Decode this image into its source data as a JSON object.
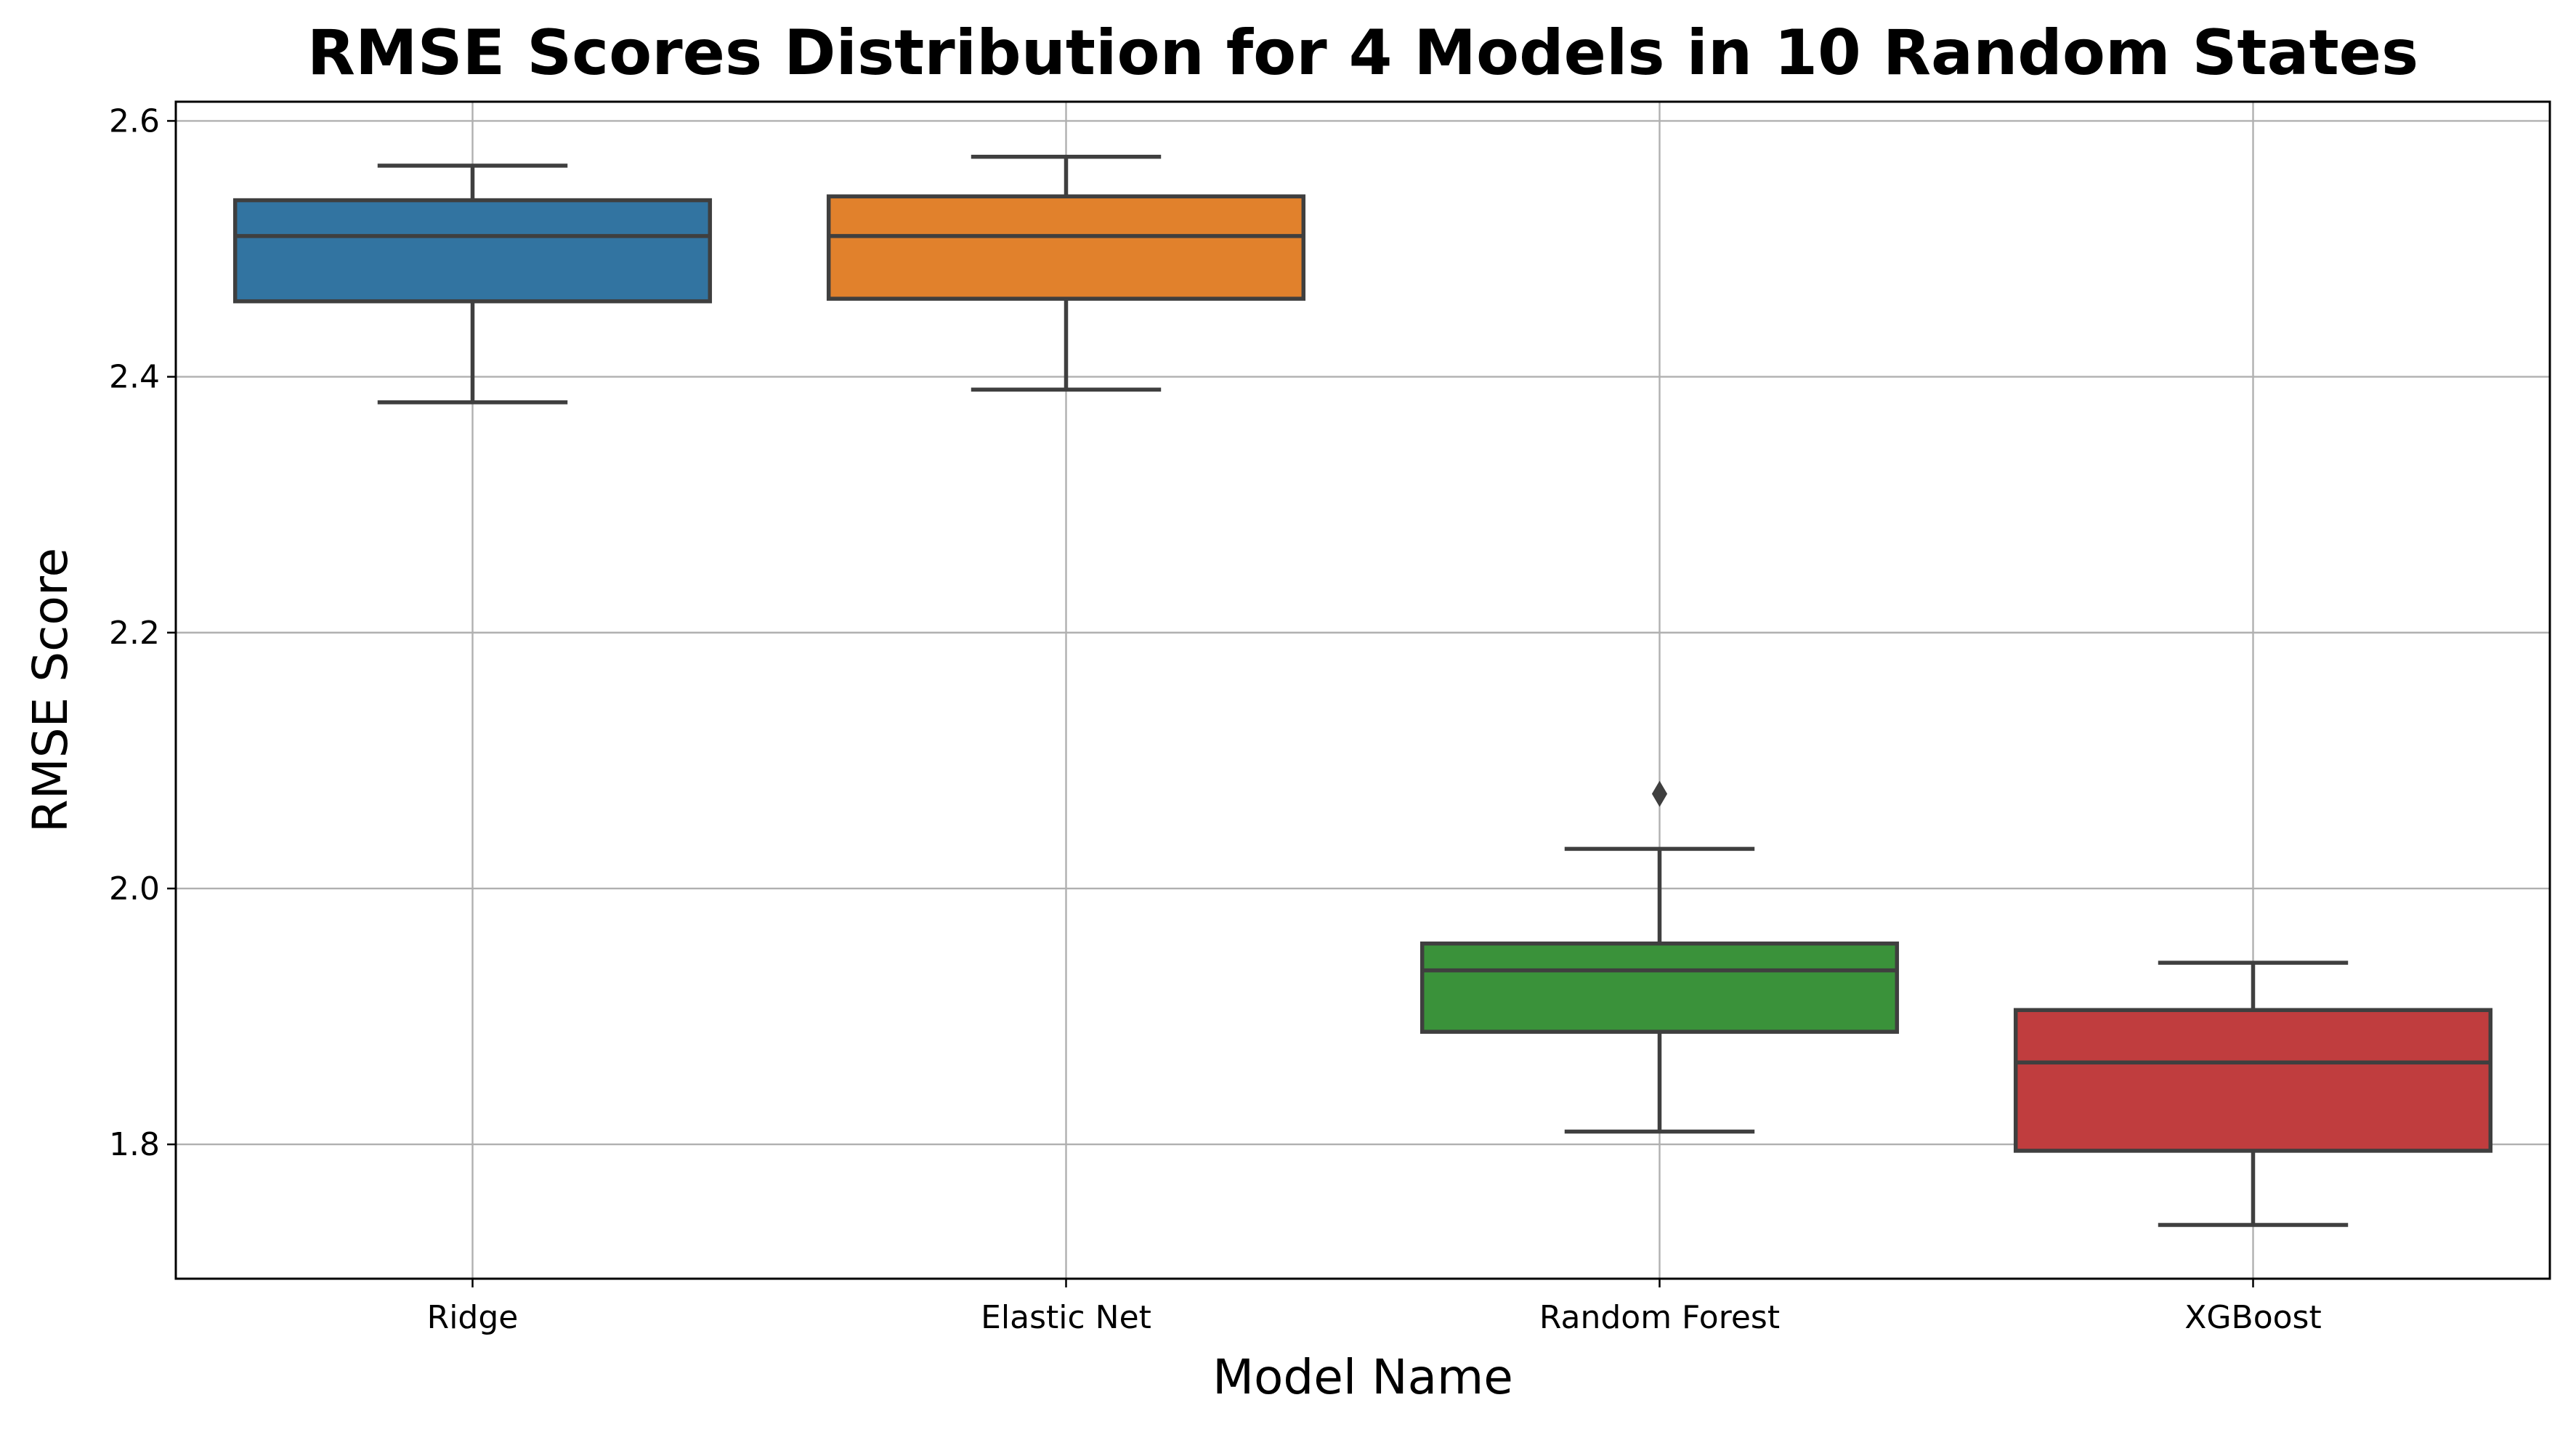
{
  "chart_data": {
    "type": "box",
    "title": "RMSE Scores Distribution for 4 Models in 10 Random States",
    "xlabel": "Model Name",
    "ylabel": "RMSE Score",
    "ylim": [
      1.695,
      2.615
    ],
    "yticks": [
      1.8,
      2.0,
      2.2,
      2.4,
      2.6
    ],
    "ytick_labels": [
      "1.8",
      "2.0",
      "2.2",
      "2.4",
      "2.6"
    ],
    "grid": true,
    "categories": [
      "Ridge",
      "Elastic Net",
      "Random Forest",
      "XGBoost"
    ],
    "boxes": [
      {
        "name": "Ridge",
        "whisker_low": 2.38,
        "q1": 2.459,
        "median": 2.51,
        "q3": 2.538,
        "whisker_high": 2.565,
        "outliers": [],
        "color": "#3274a1"
      },
      {
        "name": "Elastic Net",
        "whisker_low": 2.39,
        "q1": 2.461,
        "median": 2.51,
        "q3": 2.541,
        "whisker_high": 2.572,
        "outliers": [],
        "color": "#e1812c"
      },
      {
        "name": "Random Forest",
        "whisker_low": 1.81,
        "q1": 1.888,
        "median": 1.936,
        "q3": 1.957,
        "whisker_high": 2.031,
        "outliers": [
          2.074
        ],
        "color": "#3a923a"
      },
      {
        "name": "XGBoost",
        "whisker_low": 1.737,
        "q1": 1.795,
        "median": 1.864,
        "q3": 1.905,
        "whisker_high": 1.942,
        "outliers": [],
        "color": "#c03d3e"
      }
    ]
  }
}
